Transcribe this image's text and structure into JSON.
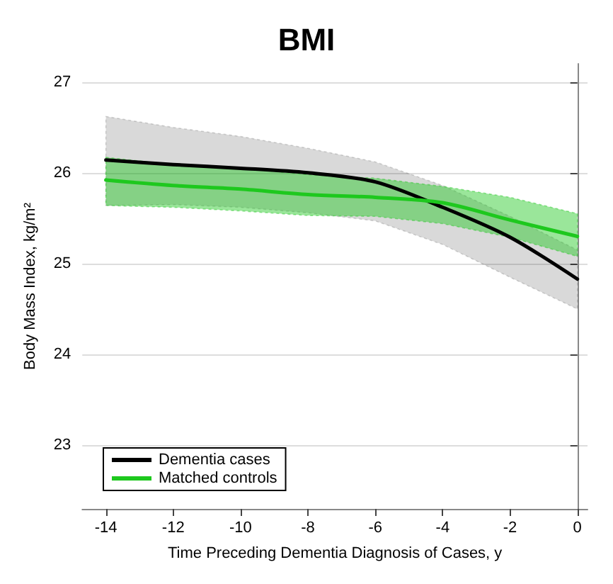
{
  "chart_data": {
    "type": "line",
    "title": "BMI",
    "xlabel": "Time Preceding Dementia Diagnosis of Cases, y",
    "ylabel": "Body Mass Index, kg/m²",
    "x": [
      -14,
      -12,
      -10,
      -8,
      -6,
      -4,
      -2,
      0
    ],
    "series": [
      {
        "name": "Dementia cases",
        "color": "#000000",
        "values": [
          26.14,
          26.09,
          26.05,
          26.0,
          25.9,
          25.62,
          25.29,
          24.83
        ],
        "lower": [
          25.64,
          25.65,
          25.62,
          25.56,
          25.47,
          25.21,
          24.85,
          24.5
        ],
        "upper": [
          26.62,
          26.5,
          26.4,
          26.27,
          26.12,
          25.86,
          25.52,
          25.15
        ]
      },
      {
        "name": "Matched controls",
        "color": "#1ec81e",
        "values": [
          25.92,
          25.86,
          25.82,
          25.76,
          25.73,
          25.67,
          25.48,
          25.3
        ],
        "lower": [
          25.64,
          25.62,
          25.58,
          25.53,
          25.52,
          25.44,
          25.29,
          25.08
        ],
        "upper": [
          26.17,
          26.09,
          26.05,
          25.98,
          25.94,
          25.85,
          25.73,
          25.55
        ]
      }
    ],
    "xlim": [
      -14.7,
      0.3
    ],
    "xticks": [
      -14,
      -12,
      -10,
      -8,
      -6,
      -4,
      -2,
      0
    ],
    "ylim": [
      22.3,
      27.2
    ],
    "yticks": [
      23,
      24,
      25,
      26,
      27
    ],
    "grid": "y",
    "legend": "bottom left",
    "marker": "none",
    "line_style": "solid"
  }
}
